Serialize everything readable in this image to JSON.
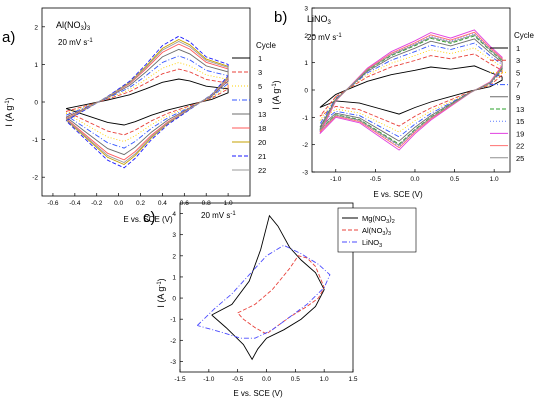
{
  "chart_data": [
    {
      "id": "a",
      "panel_label": "a)",
      "type": "line",
      "electrolyte": "Al(NO",
      "electrolyte_sub": "3",
      "electrolyte_end": ")",
      "electrolyte_sub2": "3",
      "scan_rate": "20 mV s",
      "scan_rate_sup": "-1",
      "xlabel": "E vs. SCE (V)",
      "ylabel_main": "I (A g",
      "ylabel_sup": "-1",
      "ylabel_end": ")",
      "xlim": [
        -0.7,
        1.2
      ],
      "ylim": [
        -2.5,
        2.5
      ],
      "xticks": [
        -0.6,
        -0.4,
        -0.2,
        0.0,
        0.2,
        0.4,
        0.6,
        0.8,
        1.0
      ],
      "xtick_labels": [
        "-0.6",
        "-0.4",
        "-0.2",
        "0.0",
        "0.2",
        "0.4",
        "0.6",
        "0.8",
        "1.0"
      ],
      "yticks": [
        -2,
        -1,
        0,
        1,
        2
      ],
      "ytick_labels": [
        "-2",
        "-1",
        "0",
        "1",
        "2"
      ],
      "legend_title": "Cycle",
      "legend_position": "right",
      "series": [
        {
          "name": "1",
          "color": "#000000",
          "dash": "",
          "scale": 0.35
        },
        {
          "name": "3",
          "color": "#e8413a",
          "dash": "4,2",
          "scale": 0.5
        },
        {
          "name": "5",
          "color": "#ffd100",
          "dash": "1,2",
          "scale": 0.6
        },
        {
          "name": "9",
          "color": "#3355ff",
          "dash": "5,2,1,2",
          "scale": 0.7
        },
        {
          "name": "13",
          "color": "#6c6c6c",
          "dash": "",
          "scale": 0.8
        },
        {
          "name": "18",
          "color": "#ff5a5a",
          "dash": "",
          "scale": 0.88
        },
        {
          "name": "20",
          "color": "#c6a000",
          "dash": "",
          "scale": 0.95
        },
        {
          "name": "21",
          "color": "#1a1aff",
          "dash": "4,2",
          "scale": 1.0
        },
        {
          "name": "22",
          "color": "#9a9a9a",
          "dash": "",
          "scale": 0.92
        }
      ]
    },
    {
      "id": "b",
      "panel_label": "b)",
      "type": "line",
      "electrolyte": "LiNO",
      "electrolyte_sub": "3",
      "scan_rate": "20 mV s",
      "scan_rate_sup": "-1",
      "xlabel": "E vs. SCE (V)",
      "ylabel_main": "I (A g",
      "ylabel_sup": "-1",
      "ylabel_end": ")",
      "xlim": [
        -1.3,
        1.2
      ],
      "ylim": [
        -3,
        3
      ],
      "xticks": [
        -1.0,
        -0.5,
        0.0,
        0.5,
        1.0
      ],
      "xtick_labels": [
        "-1.0",
        "-0.5",
        "0.0",
        "0.5",
        "1.0"
      ],
      "yticks": [
        -3,
        -2,
        -1,
        0,
        1,
        2,
        3
      ],
      "ytick_labels": [
        "-3",
        "-2",
        "-1",
        "0",
        "1",
        "2",
        "3"
      ],
      "legend_title": "Cycle",
      "legend_position": "right",
      "series": [
        {
          "name": "1",
          "color": "#000000",
          "dash": "",
          "scale": 0.4
        },
        {
          "name": "3",
          "color": "#e8413a",
          "dash": "4,2",
          "scale": 0.6
        },
        {
          "name": "5",
          "color": "#ffd100",
          "dash": "1,2",
          "scale": 0.7
        },
        {
          "name": "7",
          "color": "#3355ff",
          "dash": "5,2,1,2",
          "scale": 0.78
        },
        {
          "name": "9",
          "color": "#6c6c6c",
          "dash": "",
          "scale": 0.85
        },
        {
          "name": "13",
          "color": "#2aa12a",
          "dash": "4,2",
          "scale": 0.9
        },
        {
          "name": "15",
          "color": "#5b7bff",
          "dash": "1,2",
          "scale": 0.94
        },
        {
          "name": "19",
          "color": "#e040e0",
          "dash": "",
          "scale": 1.0
        },
        {
          "name": "22",
          "color": "#ff7070",
          "dash": "",
          "scale": 0.96
        },
        {
          "name": "25",
          "color": "#8f8f8f",
          "dash": "",
          "scale": 0.92
        }
      ]
    },
    {
      "id": "c",
      "panel_label": "c)",
      "type": "line",
      "scan_rate": "20 mV s",
      "scan_rate_sup": "-1",
      "xlabel": "E vs. SCE (V)",
      "ylabel_main": "I (A g",
      "ylabel_sup": "-1",
      "ylabel_end": ")",
      "xlim": [
        -1.5,
        1.5
      ],
      "ylim": [
        -3.5,
        4.5
      ],
      "xticks": [
        -1.5,
        -1.0,
        -0.5,
        0.0,
        0.5,
        1.0,
        1.5
      ],
      "xtick_labels": [
        "-1.5",
        "-1.0",
        "-0.5",
        "0.0",
        "0.5",
        "1.0",
        "1.5"
      ],
      "yticks": [
        -3,
        -2,
        -1,
        0,
        1,
        2,
        3,
        4
      ],
      "ytick_labels": [
        "-3",
        "-2",
        "-1",
        "0",
        "1",
        "2",
        "3",
        "4"
      ],
      "legend_position": "top-right",
      "series": [
        {
          "name": "Mg(NO",
          "sub": "3",
          "end": ")",
          "sub2": "2",
          "color": "#000000",
          "dash": ""
        },
        {
          "name": "Al(NO",
          "sub": "3",
          "end": ")",
          "sub2": "3",
          "color": "#e8413a",
          "dash": "4,2"
        },
        {
          "name": "LiNO",
          "sub": "3",
          "end": "",
          "sub2": "",
          "color": "#4b4bff",
          "dash": "5,2,1,2"
        }
      ]
    }
  ]
}
